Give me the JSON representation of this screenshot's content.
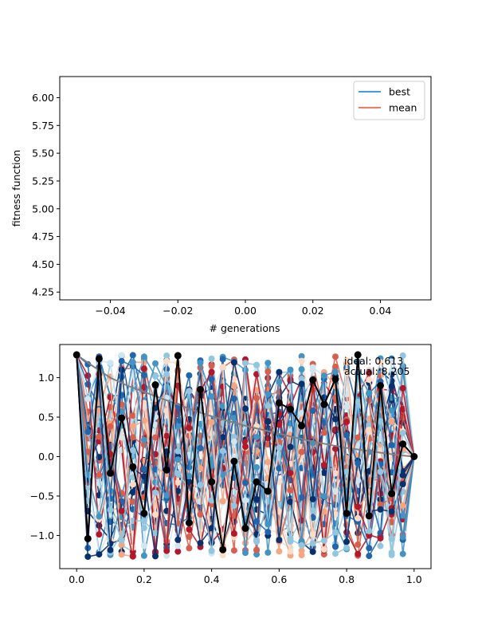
{
  "chart_data": [
    {
      "type": "line",
      "xlabel": "# generations",
      "ylabel": "fitness function",
      "xlim": [
        -0.055,
        0.055
      ],
      "ylim": [
        4.18,
        6.19
      ],
      "xticks": [
        "−0.04",
        "−0.02",
        "0.00",
        "0.02",
        "0.04"
      ],
      "xtick_values": [
        -0.04,
        -0.02,
        0.0,
        0.02,
        0.04
      ],
      "yticks": [
        "4.25",
        "4.50",
        "4.75",
        "5.00",
        "5.25",
        "5.50",
        "5.75",
        "6.00"
      ],
      "ytick_values": [
        4.25,
        4.5,
        4.75,
        5.0,
        5.25,
        5.5,
        5.75,
        6.0
      ],
      "legend_position": "top-right",
      "series": [
        {
          "name": "best",
          "color": "#1f8ef1",
          "x": [],
          "values": []
        },
        {
          "name": "mean",
          "color": "#ee6a4e",
          "x": [],
          "values": []
        }
      ]
    },
    {
      "type": "line",
      "xlim": [
        -0.05,
        1.05
      ],
      "ylim": [
        -1.42,
        1.42
      ],
      "xticks": [
        "0.0",
        "0.2",
        "0.4",
        "0.6",
        "0.8",
        "1.0"
      ],
      "xtick_values": [
        0.0,
        0.2,
        0.4,
        0.6,
        0.8,
        1.0
      ],
      "yticks": [
        "−1.0",
        "−0.5",
        "0.0",
        "0.5",
        "1.0"
      ],
      "ytick_values": [
        -1.0,
        -0.5,
        0.0,
        0.5,
        1.0
      ],
      "annotations": [
        "ideal: 0.613",
        "actual: 8.205"
      ],
      "ideal_curve": {
        "color": "#808080",
        "x": [
          0.0,
          0.05,
          0.1,
          0.15,
          0.2,
          0.25,
          0.3,
          0.35,
          0.4,
          0.45,
          0.5,
          0.55,
          0.6,
          0.65,
          0.7,
          0.75,
          0.8,
          0.85,
          0.9,
          0.95,
          1.0
        ],
        "values": [
          1.29,
          1.14,
          1.0,
          0.9,
          0.82,
          0.74,
          0.66,
          0.58,
          0.51,
          0.45,
          0.39,
          0.34,
          0.29,
          0.24,
          0.19,
          0.15,
          0.11,
          0.08,
          0.05,
          0.02,
          0.0
        ]
      },
      "population_colormap": [
        "#08306b",
        "#2166ac",
        "#4393c3",
        "#92c5de",
        "#d1e5f0",
        "#fddbc7",
        "#f4a582",
        "#d6604d",
        "#b2182b"
      ],
      "population_count": 40,
      "best_path": {
        "color": "#000000",
        "x": [
          0.0,
          0.0333,
          0.0667,
          0.1,
          0.1333,
          0.1667,
          0.2,
          0.2333,
          0.2667,
          0.3,
          0.3333,
          0.3667,
          0.4,
          0.4333,
          0.4667,
          0.5,
          0.5333,
          0.5667,
          0.6,
          0.6333,
          0.6667,
          0.7,
          0.7333,
          0.7667,
          0.8,
          0.8333,
          0.8667,
          0.9,
          0.9333,
          0.9667,
          1.0
        ],
        "values": [
          1.29,
          -1.04,
          1.24,
          -0.21,
          0.49,
          -0.13,
          -0.72,
          0.91,
          -0.17,
          1.28,
          -0.84,
          0.85,
          -0.32,
          -1.18,
          -0.06,
          -0.91,
          -0.32,
          -0.44,
          0.68,
          0.6,
          0.39,
          0.97,
          0.66,
          0.98,
          -0.72,
          1.29,
          -0.75,
          0.9,
          -0.47,
          0.16,
          0.0
        ]
      }
    }
  ]
}
